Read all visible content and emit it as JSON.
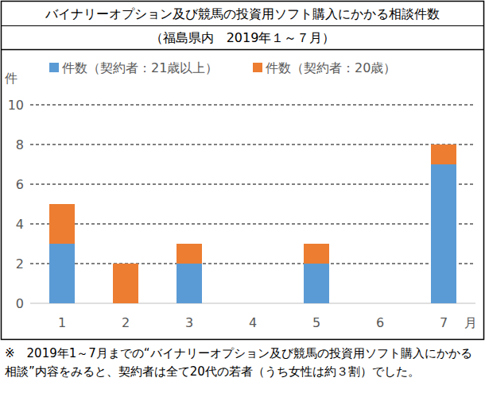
{
  "chart_data": {
    "type": "bar",
    "title": "バイナリーオプション及び競馬の投資用ソフト購入にかかる相談件数",
    "subtitle": "（福島県内　2019年１～７月）",
    "x_label": "月",
    "y_label": "件",
    "categories": [
      "1",
      "2",
      "3",
      "4",
      "5",
      "6",
      "7"
    ],
    "series": [
      {
        "name": "件数（契約者：21歳以上）",
        "color": "#5b9bd5",
        "values": [
          3,
          0,
          2,
          0,
          2,
          0,
          7
        ]
      },
      {
        "name": "件数（契約者：20歳）",
        "color": "#ed7d31",
        "values": [
          2,
          2,
          1,
          0,
          1,
          0,
          1
        ]
      }
    ],
    "stacked": true,
    "ylim": [
      0,
      10
    ],
    "yticks": [
      0,
      2,
      4,
      6,
      8,
      10
    ],
    "grid": true,
    "legend": "top",
    "annotations": [
      "※　2019年1～7月までの“バイナリーオプション及び競馬の投資用ソフト購入にかかる相談”内容をみると、契約者は全て20代の若者（うち女性は約３割）でした。"
    ]
  }
}
